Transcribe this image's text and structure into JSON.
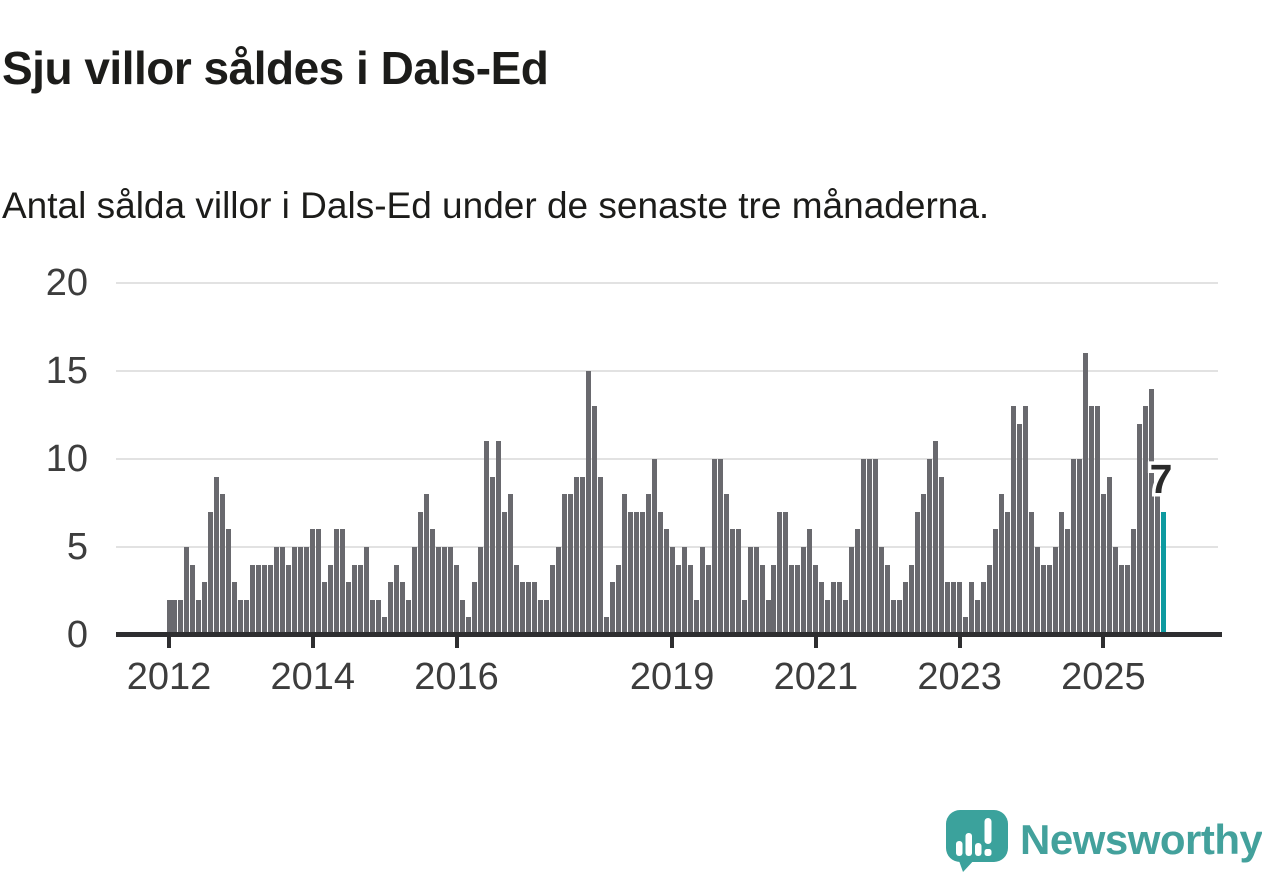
{
  "header": {
    "title": "Sju villor såldes i Dals-Ed",
    "subtitle": "Antal sålda villor i Dals-Ed under de senaste tre månaderna."
  },
  "chart_data": {
    "type": "bar",
    "title": "Sju villor såldes i Dals-Ed",
    "subtitle": "Antal sålda villor i Dals-Ed under de senaste tre månaderna.",
    "x_start": "2012-01",
    "frequency": "monthly",
    "values": [
      2,
      2,
      2,
      5,
      4,
      2,
      3,
      7,
      9,
      8,
      6,
      3,
      2,
      2,
      4,
      4,
      4,
      4,
      5,
      5,
      4,
      5,
      5,
      5,
      6,
      6,
      3,
      4,
      6,
      6,
      3,
      4,
      4,
      5,
      2,
      2,
      1,
      3,
      4,
      3,
      2,
      5,
      7,
      8,
      6,
      5,
      5,
      5,
      4,
      2,
      1,
      3,
      5,
      11,
      9,
      11,
      7,
      8,
      4,
      3,
      3,
      3,
      2,
      2,
      4,
      5,
      8,
      8,
      9,
      9,
      15,
      13,
      9,
      1,
      3,
      4,
      8,
      7,
      7,
      7,
      8,
      10,
      7,
      6,
      5,
      4,
      5,
      4,
      2,
      5,
      4,
      10,
      10,
      8,
      6,
      6,
      2,
      5,
      5,
      4,
      2,
      4,
      7,
      7,
      4,
      4,
      5,
      6,
      4,
      3,
      2,
      3,
      3,
      2,
      5,
      6,
      10,
      10,
      10,
      5,
      4,
      2,
      2,
      3,
      4,
      7,
      8,
      10,
      11,
      9,
      3,
      3,
      3,
      1,
      3,
      2,
      3,
      4,
      6,
      8,
      7,
      13,
      12,
      13,
      7,
      5,
      4,
      4,
      5,
      7,
      6,
      10,
      10,
      16,
      13,
      13,
      8,
      9,
      5,
      4,
      4,
      6,
      12,
      13,
      14,
      8,
      7
    ],
    "highlight_last_bar": true,
    "last_value_label": "7",
    "ylim": [
      0,
      20
    ],
    "yticks": [
      0,
      5,
      10,
      15,
      20
    ],
    "xticks": [
      {
        "label": "2012",
        "month_index": 0
      },
      {
        "label": "2014",
        "month_index": 24
      },
      {
        "label": "2016",
        "month_index": 48
      },
      {
        "label": "2019",
        "month_index": 84
      },
      {
        "label": "2021",
        "month_index": 108
      },
      {
        "label": "2023",
        "month_index": 132
      },
      {
        "label": "2025",
        "month_index": 156
      }
    ],
    "grid": true,
    "legend": false,
    "colors": {
      "bar": "#69696e",
      "highlight": "#0e9aa0",
      "gridline": "#e2e2e2",
      "axis": "#2e2e30",
      "axis_labels": "#3d3d3d"
    }
  },
  "footer": {
    "brand": "Newsworthy",
    "brand_color": "#43a19c",
    "logo_teal": "#3ba29c"
  }
}
